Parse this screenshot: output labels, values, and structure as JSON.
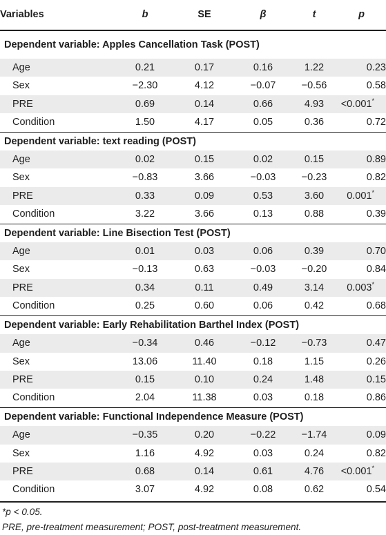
{
  "table": {
    "headers": {
      "variables": "Variables",
      "b": "b",
      "se": "SE",
      "beta": "β",
      "t": "t",
      "p": "p"
    },
    "sections": [
      {
        "title": "Dependent variable: Apples Cancellation Task (POST)",
        "rows": [
          {
            "variable": "Age",
            "b": "0.21",
            "se": "0.17",
            "beta": "0.16",
            "t": "1.22",
            "p": "0.23"
          },
          {
            "variable": "Sex",
            "b": "−2.30",
            "se": "4.12",
            "beta": "−0.07",
            "t": "−0.56",
            "p": "0.58"
          },
          {
            "variable": "PRE",
            "b": "0.69",
            "se": "0.14",
            "beta": "0.66",
            "t": "4.93",
            "p": "<0.001*"
          },
          {
            "variable": "Condition",
            "b": "1.50",
            "se": "4.17",
            "beta": "0.05",
            "t": "0.36",
            "p": "0.72"
          }
        ]
      },
      {
        "title": "Dependent variable: text reading (POST)",
        "rows": [
          {
            "variable": "Age",
            "b": "0.02",
            "se": "0.15",
            "beta": "0.02",
            "t": "0.15",
            "p": "0.89"
          },
          {
            "variable": "Sex",
            "b": "−0.83",
            "se": "3.66",
            "beta": "−0.03",
            "t": "−0.23",
            "p": "0.82"
          },
          {
            "variable": "PRE",
            "b": "0.33",
            "se": "0.09",
            "beta": "0.53",
            "t": "3.60",
            "p": "0.001*"
          },
          {
            "variable": "Condition",
            "b": "3.22",
            "se": "3.66",
            "beta": "0.13",
            "t": "0.88",
            "p": "0.39"
          }
        ]
      },
      {
        "title": "Dependent variable: Line Bisection Test (POST)",
        "rows": [
          {
            "variable": "Age",
            "b": "0.01",
            "se": "0.03",
            "beta": "0.06",
            "t": "0.39",
            "p": "0.70"
          },
          {
            "variable": "Sex",
            "b": "−0.13",
            "se": "0.63",
            "beta": "−0.03",
            "t": "−0.20",
            "p": "0.84"
          },
          {
            "variable": "PRE",
            "b": "0.34",
            "se": "0.11",
            "beta": "0.49",
            "t": "3.14",
            "p": "0.003*"
          },
          {
            "variable": "Condition",
            "b": "0.25",
            "se": "0.60",
            "beta": "0.06",
            "t": "0.42",
            "p": "0.68"
          }
        ]
      },
      {
        "title": "Dependent variable: Early Rehabilitation Barthel Index (POST)",
        "rows": [
          {
            "variable": "Age",
            "b": "−0.34",
            "se": "0.46",
            "beta": "−0.12",
            "t": "−0.73",
            "p": "0.47"
          },
          {
            "variable": "Sex",
            "b": "13.06",
            "se": "11.40",
            "beta": "0.18",
            "t": "1.15",
            "p": "0.26"
          },
          {
            "variable": "PRE",
            "b": "0.15",
            "se": "0.10",
            "beta": "0.24",
            "t": "1.48",
            "p": "0.15"
          },
          {
            "variable": "Condition",
            "b": "2.04",
            "se": "11.38",
            "beta": "0.03",
            "t": "0.18",
            "p": "0.86"
          }
        ]
      },
      {
        "title": "Dependent variable: Functional Independence Measure (POST)",
        "rows": [
          {
            "variable": "Age",
            "b": "−0.35",
            "se": "0.20",
            "beta": "−0.22",
            "t": "−1.74",
            "p": "0.09"
          },
          {
            "variable": "Sex",
            "b": "1.16",
            "se": "4.92",
            "beta": "0.03",
            "t": "0.24",
            "p": "0.82"
          },
          {
            "variable": "PRE",
            "b": "0.68",
            "se": "0.14",
            "beta": "0.61",
            "t": "4.76",
            "p": "<0.001*"
          },
          {
            "variable": "Condition",
            "b": "3.07",
            "se": "4.92",
            "beta": "0.08",
            "t": "0.62",
            "p": "0.54"
          }
        ]
      }
    ]
  },
  "footnotes": {
    "significance": "*p < 0.05.",
    "abbreviations": "PRE, pre-treatment measurement; POST, post-treatment measurement."
  },
  "colors": {
    "stripe": "#ebebeb",
    "text": "#1f1f1f"
  }
}
